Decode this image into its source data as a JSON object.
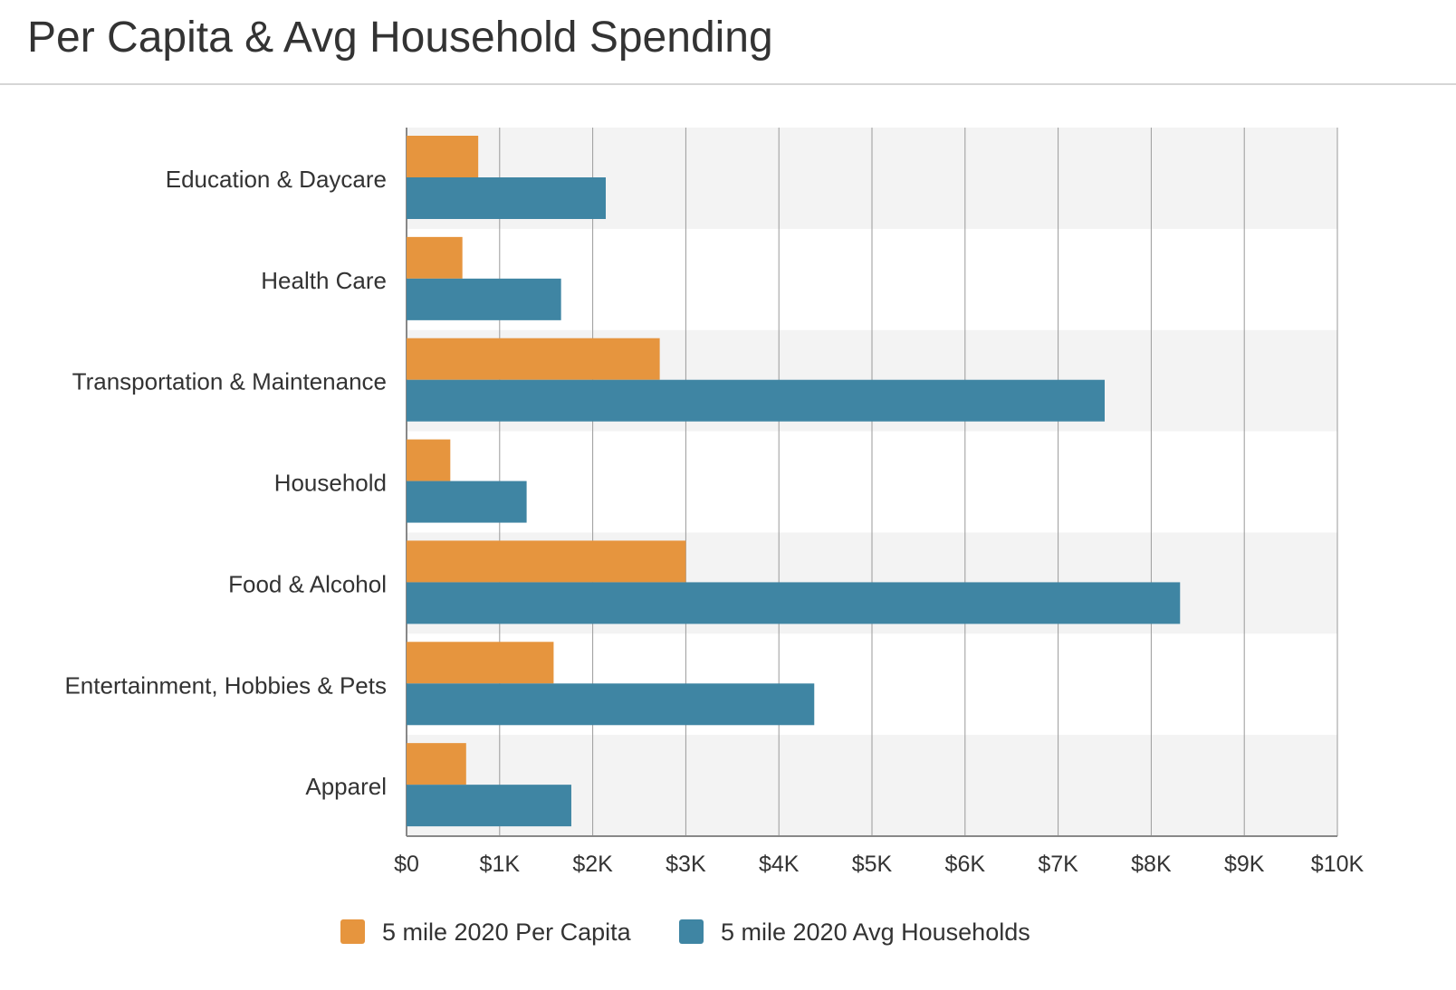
{
  "header": {
    "title": "Per Capita & Avg Household Spending"
  },
  "chart_data": {
    "type": "bar",
    "orientation": "horizontal",
    "categories": [
      "Education & Daycare",
      "Health Care",
      "Transportation & Maintenance",
      "Household",
      "Food & Alcohol",
      "Entertainment, Hobbies & Pets",
      "Apparel"
    ],
    "series": [
      {
        "name": "5 mile 2020 Per Capita",
        "color": "#e6953e",
        "values": [
          770,
          600,
          2720,
          470,
          3000,
          1580,
          640
        ]
      },
      {
        "name": "5 mile 2020 Avg Households",
        "color": "#3f85a3",
        "values": [
          2140,
          1660,
          7500,
          1290,
          8310,
          4380,
          1770
        ]
      }
    ],
    "xlim": [
      0,
      10000
    ],
    "xticks": [
      "$0",
      "$1K",
      "$2K",
      "$3K",
      "$4K",
      "$5K",
      "$6K",
      "$7K",
      "$8K",
      "$9K",
      "$10K"
    ],
    "grid": true,
    "band_color": "#f3f3f3",
    "legend_position": "bottom"
  }
}
